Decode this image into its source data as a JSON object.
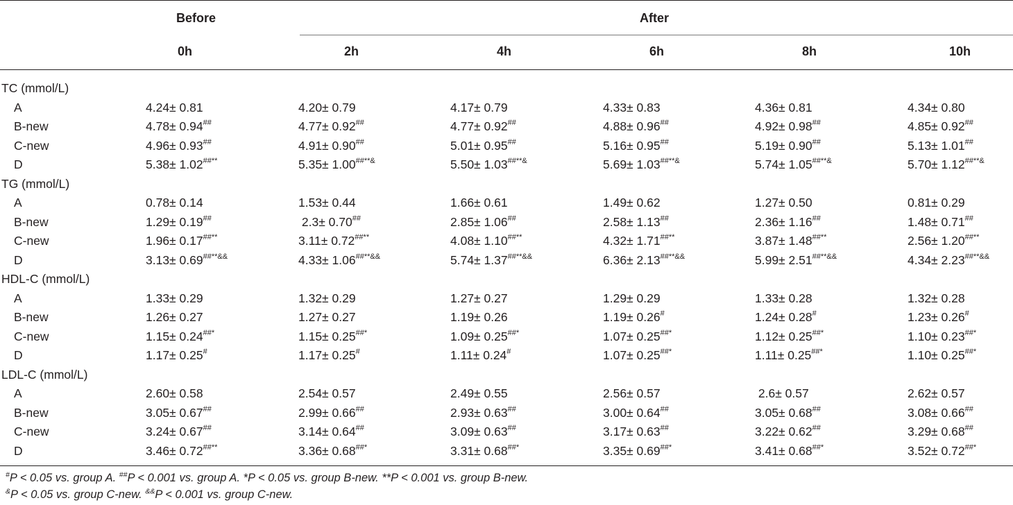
{
  "header": {
    "before": "Before",
    "after": "After",
    "timepoints": [
      "0h",
      "2h",
      "4h",
      "6h",
      "8h",
      "10h"
    ]
  },
  "sections": [
    {
      "label": "TC (mmol/L)",
      "rows": [
        {
          "group": "A",
          "cells": [
            {
              "v": "4.24± 0.81",
              "s": ""
            },
            {
              "v": "4.20± 0.79",
              "s": ""
            },
            {
              "v": "4.17± 0.79",
              "s": ""
            },
            {
              "v": "4.33± 0.83",
              "s": ""
            },
            {
              "v": "4.36± 0.81",
              "s": ""
            },
            {
              "v": "4.34± 0.80",
              "s": ""
            }
          ]
        },
        {
          "group": "B-new",
          "cells": [
            {
              "v": "4.78± 0.94",
              "s": "##"
            },
            {
              "v": "4.77± 0.92",
              "s": "##"
            },
            {
              "v": "4.77± 0.92",
              "s": "##"
            },
            {
              "v": "4.88± 0.96",
              "s": "##"
            },
            {
              "v": "4.92± 0.98",
              "s": "##"
            },
            {
              "v": "4.85± 0.92",
              "s": "##"
            }
          ]
        },
        {
          "group": "C-new",
          "cells": [
            {
              "v": "4.96± 0.93",
              "s": "##"
            },
            {
              "v": "4.91± 0.90",
              "s": "##"
            },
            {
              "v": "5.01± 0.95",
              "s": "##"
            },
            {
              "v": "5.16± 0.95",
              "s": "##"
            },
            {
              "v": "5.19± 0.90",
              "s": "##"
            },
            {
              "v": "5.13± 1.01",
              "s": "##"
            }
          ]
        },
        {
          "group": "D",
          "cells": [
            {
              "v": "5.38± 1.02",
              "s": "##**"
            },
            {
              "v": "5.35± 1.00",
              "s": "##**&"
            },
            {
              "v": "5.50± 1.03",
              "s": "##**&"
            },
            {
              "v": "5.69± 1.03",
              "s": "##**&"
            },
            {
              "v": "5.74± 1.05",
              "s": "##**&"
            },
            {
              "v": "5.70± 1.12",
              "s": "##**&"
            }
          ]
        }
      ]
    },
    {
      "label": "TG (mmol/L)",
      "rows": [
        {
          "group": "A",
          "cells": [
            {
              "v": "0.78± 0.14",
              "s": ""
            },
            {
              "v": "1.53± 0.44",
              "s": ""
            },
            {
              "v": "1.66± 0.61",
              "s": ""
            },
            {
              "v": "1.49± 0.62",
              "s": ""
            },
            {
              "v": "1.27± 0.50",
              "s": ""
            },
            {
              "v": "0.81± 0.29",
              "s": ""
            }
          ]
        },
        {
          "group": "B-new",
          "cells": [
            {
              "v": "1.29± 0.19",
              "s": "##"
            },
            {
              "v": " 2.3± 0.70",
              "s": "##"
            },
            {
              "v": "2.85± 1.06",
              "s": "##"
            },
            {
              "v": "2.58± 1.13",
              "s": "##"
            },
            {
              "v": "2.36± 1.16",
              "s": "##"
            },
            {
              "v": "1.48± 0.71",
              "s": "##"
            }
          ]
        },
        {
          "group": "C-new",
          "cells": [
            {
              "v": "1.96± 0.17",
              "s": "##**"
            },
            {
              "v": "3.11± 0.72",
              "s": "##**"
            },
            {
              "v": "4.08± 1.10",
              "s": "##**"
            },
            {
              "v": "4.32± 1.71",
              "s": "##**"
            },
            {
              "v": "3.87± 1.48",
              "s": "##**"
            },
            {
              "v": "2.56± 1.20",
              "s": "##**"
            }
          ]
        },
        {
          "group": "D",
          "cells": [
            {
              "v": "3.13± 0.69",
              "s": "##**&&"
            },
            {
              "v": "4.33± 1.06",
              "s": "##**&&"
            },
            {
              "v": "5.74± 1.37",
              "s": "##**&&"
            },
            {
              "v": "6.36± 2.13",
              "s": "##**&&"
            },
            {
              "v": "5.99± 2.51",
              "s": "##**&&"
            },
            {
              "v": "4.34± 2.23",
              "s": "##**&&"
            }
          ]
        }
      ]
    },
    {
      "label": "HDL-C (mmol/L)",
      "rows": [
        {
          "group": "A",
          "cells": [
            {
              "v": "1.33± 0.29",
              "s": ""
            },
            {
              "v": "1.32± 0.29",
              "s": ""
            },
            {
              "v": "1.27± 0.27",
              "s": ""
            },
            {
              "v": "1.29± 0.29",
              "s": ""
            },
            {
              "v": "1.33± 0.28",
              "s": ""
            },
            {
              "v": "1.32± 0.28",
              "s": ""
            }
          ]
        },
        {
          "group": "B-new",
          "cells": [
            {
              "v": "1.26± 0.27",
              "s": ""
            },
            {
              "v": "1.27± 0.27",
              "s": ""
            },
            {
              "v": "1.19± 0.26",
              "s": ""
            },
            {
              "v": "1.19± 0.26",
              "s": "#"
            },
            {
              "v": "1.24± 0.28",
              "s": "#"
            },
            {
              "v": "1.23± 0.26",
              "s": "#"
            }
          ]
        },
        {
          "group": "C-new",
          "cells": [
            {
              "v": "1.15± 0.24",
              "s": "##*"
            },
            {
              "v": "1.15± 0.25",
              "s": "##*"
            },
            {
              "v": "1.09± 0.25",
              "s": "##*"
            },
            {
              "v": "1.07± 0.25",
              "s": "##*"
            },
            {
              "v": "1.12± 0.25",
              "s": "##*"
            },
            {
              "v": "1.10± 0.23",
              "s": "##*"
            }
          ]
        },
        {
          "group": "D",
          "cells": [
            {
              "v": "1.17± 0.25",
              "s": "#"
            },
            {
              "v": "1.17± 0.25",
              "s": "#"
            },
            {
              "v": "1.11± 0.24",
              "s": "#"
            },
            {
              "v": "1.07± 0.25",
              "s": "##*"
            },
            {
              "v": "1.11± 0.25",
              "s": "##*"
            },
            {
              "v": "1.10± 0.25",
              "s": "##*"
            }
          ]
        }
      ]
    },
    {
      "label": "LDL-C (mmol/L)",
      "rows": [
        {
          "group": "A",
          "cells": [
            {
              "v": "2.60± 0.58",
              "s": ""
            },
            {
              "v": "2.54± 0.57",
              "s": ""
            },
            {
              "v": "2.49± 0.55",
              "s": ""
            },
            {
              "v": "2.56± 0.57",
              "s": ""
            },
            {
              "v": " 2.6± 0.57",
              "s": ""
            },
            {
              "v": "2.62± 0.57",
              "s": ""
            }
          ]
        },
        {
          "group": "B-new",
          "cells": [
            {
              "v": "3.05± 0.67",
              "s": "##"
            },
            {
              "v": "2.99± 0.66",
              "s": "##"
            },
            {
              "v": "2.93± 0.63",
              "s": "##"
            },
            {
              "v": "3.00± 0.64",
              "s": "##"
            },
            {
              "v": "3.05± 0.68",
              "s": "##"
            },
            {
              "v": "3.08± 0.66",
              "s": "##"
            }
          ]
        },
        {
          "group": "C-new",
          "cells": [
            {
              "v": "3.24± 0.67",
              "s": "##"
            },
            {
              "v": "3.14± 0.64",
              "s": "##"
            },
            {
              "v": "3.09± 0.63",
              "s": "##"
            },
            {
              "v": "3.17± 0.63",
              "s": "##"
            },
            {
              "v": "3.22± 0.62",
              "s": "##"
            },
            {
              "v": "3.29± 0.68",
              "s": "##"
            }
          ]
        },
        {
          "group": "D",
          "cells": [
            {
              "v": "3.46± 0.72",
              "s": "##**"
            },
            {
              "v": "3.36± 0.68",
              "s": "##*"
            },
            {
              "v": "3.31± 0.68",
              "s": "##*"
            },
            {
              "v": "3.35± 0.69",
              "s": "##*"
            },
            {
              "v": "3.41± 0.68",
              "s": "##*"
            },
            {
              "v": "3.52± 0.72",
              "s": "##*"
            }
          ]
        }
      ]
    }
  ],
  "footnotes": [
    [
      {
        "sup": "#",
        "text": "P < 0.05 vs. group A. "
      },
      {
        "sup": "##",
        "text": "P < 0.001 vs. group A. *P < 0.05 vs. group B-new. **P < 0.001 vs. group B-new."
      }
    ],
    [
      {
        "sup": "&",
        "text": "P < 0.05 vs. group C-new. "
      },
      {
        "sup": "&&",
        "text": "P < 0.001 vs. group C-new."
      }
    ]
  ]
}
